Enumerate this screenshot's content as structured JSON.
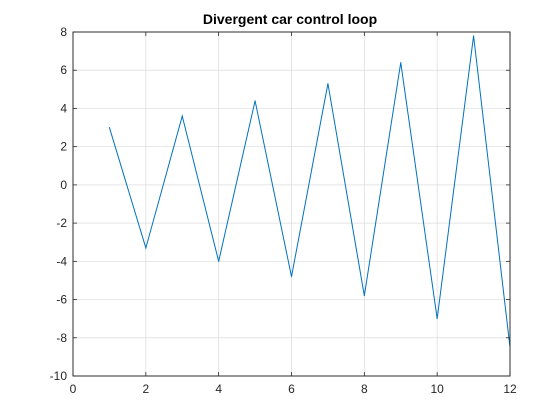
{
  "chart_data": {
    "type": "line",
    "title": "Divergent car control loop",
    "xlabel": "",
    "ylabel": "",
    "xlim": [
      0,
      12
    ],
    "ylim": [
      -10,
      8
    ],
    "xticks": [
      0,
      2,
      4,
      6,
      8,
      10,
      12
    ],
    "yticks": [
      -10,
      -8,
      -6,
      -4,
      -2,
      0,
      2,
      4,
      6,
      8
    ],
    "grid": true,
    "legend": "none",
    "series": [
      {
        "color": "#0072bd",
        "x": [
          1,
          2,
          3,
          4,
          5,
          6,
          7,
          8,
          9,
          10,
          11,
          12
        ],
        "y": [
          3.0,
          -3.3,
          3.6,
          -4.0,
          4.4,
          -4.8,
          5.3,
          -5.8,
          6.4,
          -7.0,
          7.8,
          -8.5
        ]
      }
    ]
  }
}
